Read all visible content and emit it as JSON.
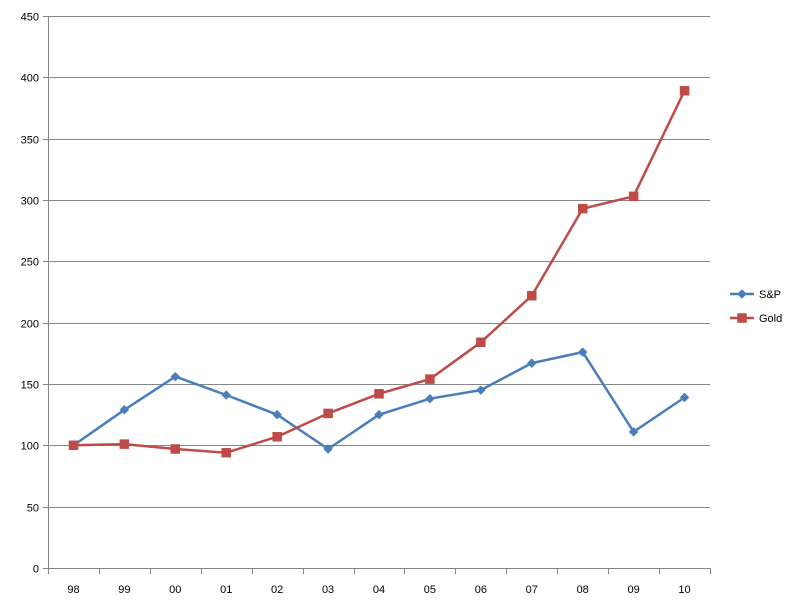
{
  "chart_data": {
    "type": "line",
    "title": "",
    "xlabel": "",
    "ylabel": "",
    "categories": [
      "98",
      "99",
      "00",
      "01",
      "02",
      "03",
      "04",
      "05",
      "06",
      "07",
      "08",
      "09",
      "10"
    ],
    "ylim": [
      0,
      450
    ],
    "yticks": [
      0,
      50,
      100,
      150,
      200,
      250,
      300,
      350,
      400,
      450
    ],
    "grid": "horizontal",
    "legend_position": "right",
    "series": [
      {
        "name": "S&P",
        "color": "#4A7EBB",
        "marker": "diamond",
        "values": [
          100,
          129,
          156,
          141,
          125,
          97,
          125,
          138,
          145,
          167,
          176,
          111,
          139
        ]
      },
      {
        "name": "Gold",
        "color": "#BE4B48",
        "marker": "square",
        "values": [
          100,
          101,
          97,
          94,
          107,
          126,
          142,
          154,
          184,
          222,
          293,
          303,
          389
        ]
      }
    ]
  }
}
